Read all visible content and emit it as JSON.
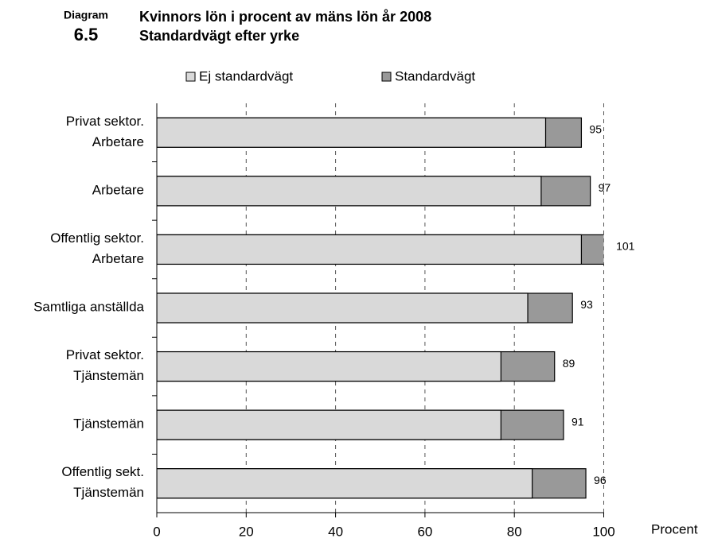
{
  "diagram_label": "Diagram",
  "diagram_number": "6.5",
  "chart_data": {
    "type": "bar",
    "orientation": "horizontal",
    "title": "Kvinnors lön i procent av mäns lön år 2008",
    "subtitle": "Standardvägt efter yrke",
    "x_label": "Procent",
    "categories": [
      [
        "Privat sektor.",
        "Arbetare"
      ],
      [
        "Arbetare"
      ],
      [
        "Offentlig sektor.",
        "Arbetare"
      ],
      [
        "Samtliga anställda"
      ],
      [
        "Privat sektor.",
        "Tjänstemän"
      ],
      [
        "Tjänstemän"
      ],
      [
        "Offentlig sekt.",
        "Tjänstemän"
      ]
    ],
    "series": [
      {
        "name": "Ej standardvägt",
        "color": "#d9d9d9",
        "values": [
          87,
          86,
          95,
          83,
          77,
          77,
          84
        ]
      },
      {
        "name": "Standardvägt",
        "color": "#999999",
        "values": [
          95,
          97,
          101,
          93,
          89,
          91,
          96
        ],
        "labeled": true
      }
    ],
    "xlim": [
      0,
      100
    ],
    "xticks": [
      0,
      20,
      40,
      60,
      80,
      100
    ],
    "grid": true,
    "legend": "top"
  }
}
